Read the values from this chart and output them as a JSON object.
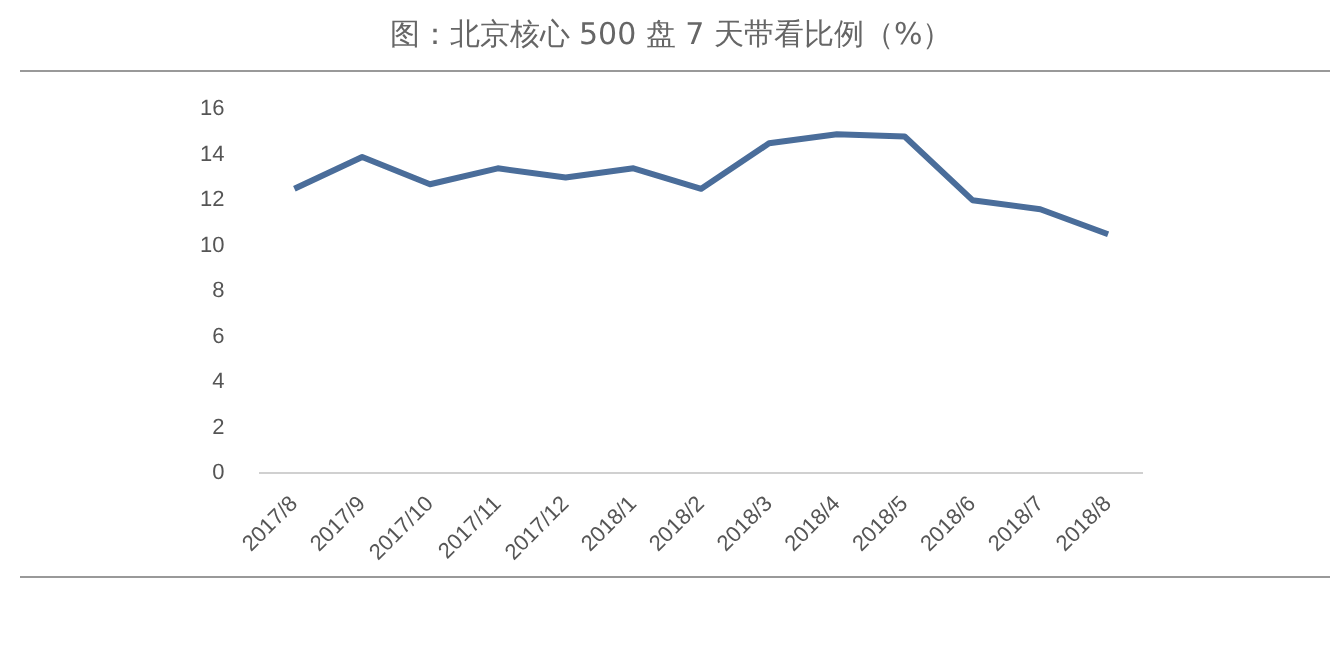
{
  "chart_data": {
    "type": "line",
    "title": "图：北京核心 500 盘 7 天带看比例（%）",
    "categories": [
      "2017/8",
      "2017/9",
      "2017/10",
      "2017/11",
      "2017/12",
      "2018/1",
      "2018/2",
      "2018/3",
      "2018/4",
      "2018/5",
      "2018/6",
      "2018/7",
      "2018/8"
    ],
    "series": [
      {
        "color": "#4a6d9a",
        "values": [
          12.5,
          13.9,
          12.7,
          13.4,
          13.0,
          13.4,
          12.5,
          14.5,
          14.9,
          14.8,
          12.0,
          11.6,
          10.5
        ]
      }
    ],
    "ylim": [
      0,
      16
    ],
    "yticks": [
      0,
      2,
      4,
      6,
      8,
      10,
      12,
      14,
      16
    ],
    "grid": false,
    "legend": false,
    "marker": "none",
    "line_style": "solid"
  }
}
